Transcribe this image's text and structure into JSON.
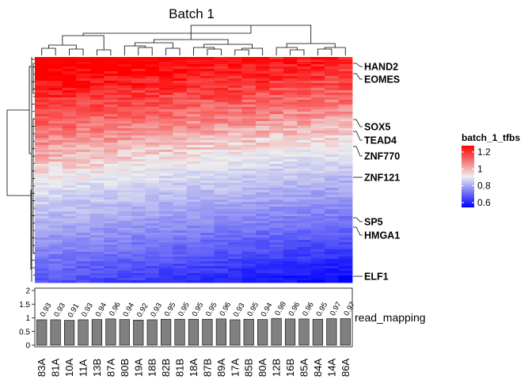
{
  "chart_data": {
    "type": "heatmap",
    "title": "Batch 1",
    "columns": [
      "83A",
      "81A",
      "10A",
      "11A",
      "13B",
      "87A",
      "80B",
      "19A",
      "18B",
      "82B",
      "81B",
      "18A",
      "87B",
      "89A",
      "17A",
      "85B",
      "80A",
      "12B",
      "16B",
      "85A",
      "84A",
      "14A",
      "86A"
    ],
    "row_labels": [
      "HAND2",
      "EOMES",
      "SOX5",
      "TEAD4",
      "ZNF770",
      "ZNF121",
      "SP5",
      "HMGA1",
      "ELF1"
    ],
    "legend": {
      "title": "batch_1_tfbs",
      "ticks": [
        1.2,
        1,
        0.8,
        0.6
      ],
      "range": [
        0.6,
        1.2
      ],
      "colors": {
        "low": "#0000ff",
        "mid": "#eeeeee",
        "high": "#ff0000"
      },
      "placement": "right"
    },
    "annotation": {
      "name": "read_mapping",
      "type": "bar",
      "ylim": [
        0,
        2
      ],
      "yticks": [
        0,
        0.5,
        1,
        1.5,
        2
      ],
      "values": [
        0.93,
        0.93,
        0.91,
        0.93,
        0.94,
        0.96,
        0.94,
        0.92,
        0.93,
        0.95,
        0.95,
        0.95,
        0.95,
        0.96,
        0.93,
        0.95,
        0.94,
        0.98,
        0.96,
        0.96,
        0.95,
        0.97,
        0.97
      ],
      "value_labels": [
        "0.93",
        "0.93",
        "0.91",
        "0.93",
        "0.94",
        "0.96",
        "0.94",
        "0.92",
        "0.93",
        "0.95",
        "0.95",
        "0.95",
        "0.95",
        "0.96",
        "0.93",
        "0.95",
        "0.94",
        "0.98",
        "0.96",
        "0.96",
        "0.95",
        "0.97",
        "0.97"
      ],
      "bar_color": "#808080"
    }
  }
}
